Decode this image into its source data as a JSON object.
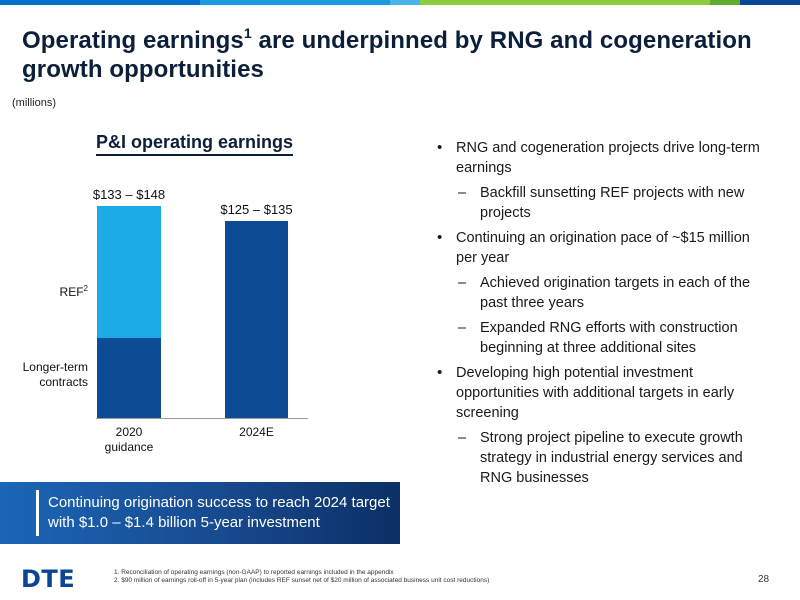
{
  "colors": {
    "top_bar": [
      "#0071ce",
      "#1a9be0",
      "#48b5e8",
      "#8ccc3f",
      "#5fae2e",
      "#0b4595"
    ],
    "ref_segment": "#1eaae7",
    "longterm_segment": "#0d4c95",
    "bar_2024": "#0d4c95",
    "title": "#0b1f3a",
    "logo": "#0b4595"
  },
  "slide": {
    "title_main": "Operating earnings",
    "title_sup": "1",
    "title_rest": " are underpinned by RNG and cogeneration growth opportunities",
    "units": "(millions)",
    "page_number": "28"
  },
  "chart_data": {
    "type": "bar",
    "stacked": true,
    "title": "P&I operating earnings",
    "categories": [
      {
        "line1": "2020",
        "line2": "guidance"
      },
      {
        "line1": "2024E",
        "line2": ""
      }
    ],
    "series": [
      {
        "name": "Longer-term contracts",
        "name_line1": "Longer-term",
        "name_line2": "contracts",
        "values": [
          53,
          130
        ]
      },
      {
        "name_base": "REF",
        "name_sup": "2",
        "values": [
          87,
          0
        ]
      }
    ],
    "totals": [
      140,
      130
    ],
    "range_labels": [
      "$133 – $148",
      "$125 – $135"
    ],
    "ylim": [
      0,
      165
    ],
    "grid": false
  },
  "bullets": [
    {
      "level": 1,
      "text": "RNG and cogeneration projects drive long-term earnings"
    },
    {
      "level": 2,
      "text": "Backfill sunsetting REF projects with new projects"
    },
    {
      "level": 1,
      "text": "Continuing an origination pace of ~$15 million per year"
    },
    {
      "level": 2,
      "text": "Achieved origination targets in each of the past three years"
    },
    {
      "level": 2,
      "text": "Expanded RNG efforts with construction beginning at three additional sites"
    },
    {
      "level": 1,
      "text": "Developing high potential investment opportunities with additional targets in early screening"
    },
    {
      "level": 2,
      "text": "Strong project pipeline to execute growth strategy in industrial energy services and RNG businesses"
    }
  ],
  "callout": {
    "text": "Continuing origination success to reach 2024 target with $1.0 – $1.4 billion 5-year investment"
  },
  "footer": {
    "logo_text": "DTE",
    "footnotes": [
      "1. Reconciliation of operating earnings (non-GAAP) to reported earnings included in the appendix",
      "2. $90 million of earnings roll-off in 5-year plan (includes REF sunset net of $20 million of associated business unit cost reductions)"
    ]
  }
}
